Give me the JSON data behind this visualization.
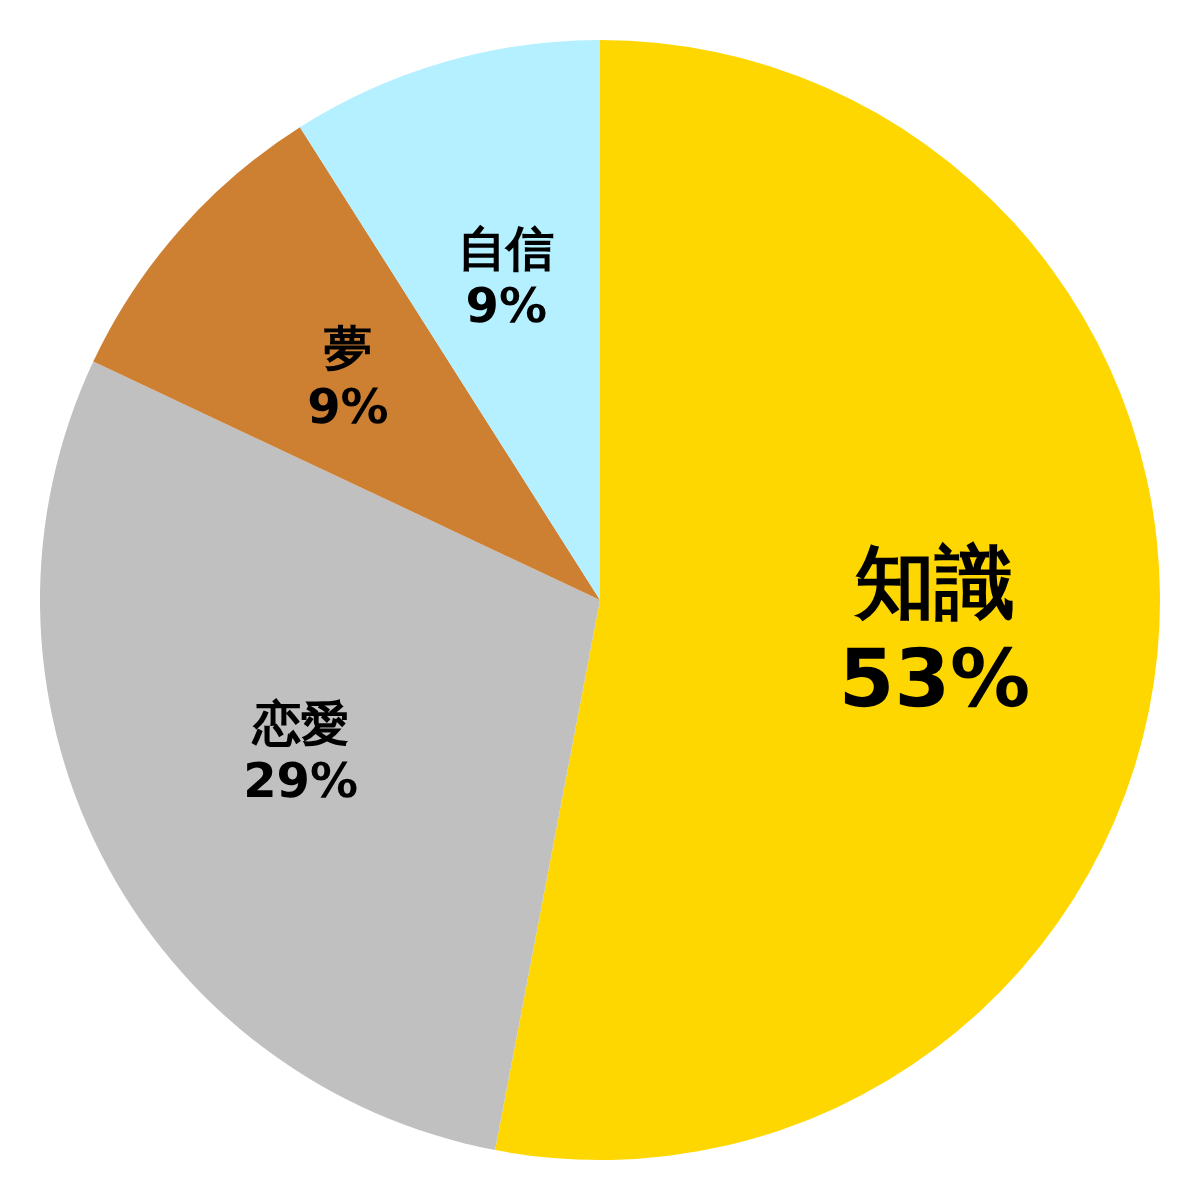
{
  "chart_data": {
    "type": "pie",
    "categories": [
      "知識",
      "恋愛",
      "夢",
      "自信"
    ],
    "values": [
      53,
      29,
      9,
      9
    ],
    "colors": [
      "#ffd700",
      "#c0c0c0",
      "#cd7f32",
      "#b4f0ff"
    ],
    "value_labels": [
      "53%",
      "29%",
      "9%",
      "9%"
    ]
  }
}
